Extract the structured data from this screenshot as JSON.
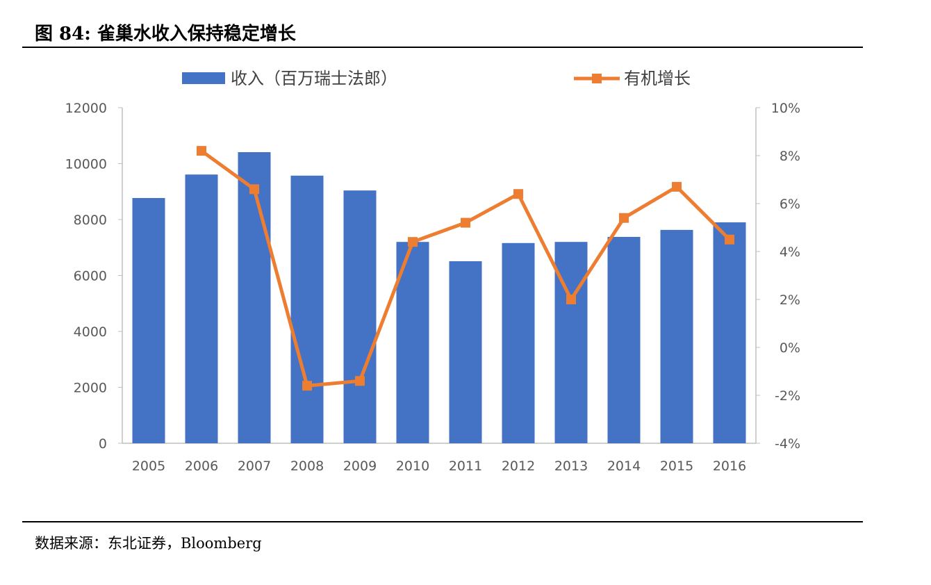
{
  "title": "图 84: 雀巢水收入保持稳定增长",
  "source": "数据来源：东北证券，Bloomberg",
  "chart_data": {
    "type": "bar+line",
    "categories": [
      "2005",
      "2006",
      "2007",
      "2008",
      "2009",
      "2010",
      "2011",
      "2012",
      "2013",
      "2014",
      "2015",
      "2016"
    ],
    "series": [
      {
        "name": "收入（百万瑞士法郎）",
        "type": "bar",
        "axis": "left",
        "color": "#4472C4",
        "values": [
          8770,
          9610,
          10410,
          9570,
          9040,
          7200,
          6510,
          7160,
          7200,
          7380,
          7630,
          7900
        ]
      },
      {
        "name": "有机增长",
        "type": "line",
        "axis": "right",
        "color": "#ED7D31",
        "unit": "%",
        "values": [
          null,
          8.2,
          6.6,
          -1.6,
          -1.4,
          4.4,
          5.2,
          6.4,
          2.0,
          5.4,
          6.7,
          4.5
        ]
      }
    ],
    "left_axis": {
      "ylim": [
        0,
        12000
      ],
      "ticks": [
        "0",
        "2000",
        "4000",
        "6000",
        "8000",
        "10000",
        "12000"
      ]
    },
    "right_axis": {
      "ylim": [
        -4,
        10
      ],
      "ticks": [
        "-4%",
        "-2%",
        "0%",
        "2%",
        "4%",
        "6%",
        "8%",
        "10%"
      ]
    },
    "grid": false,
    "legend": "top"
  }
}
